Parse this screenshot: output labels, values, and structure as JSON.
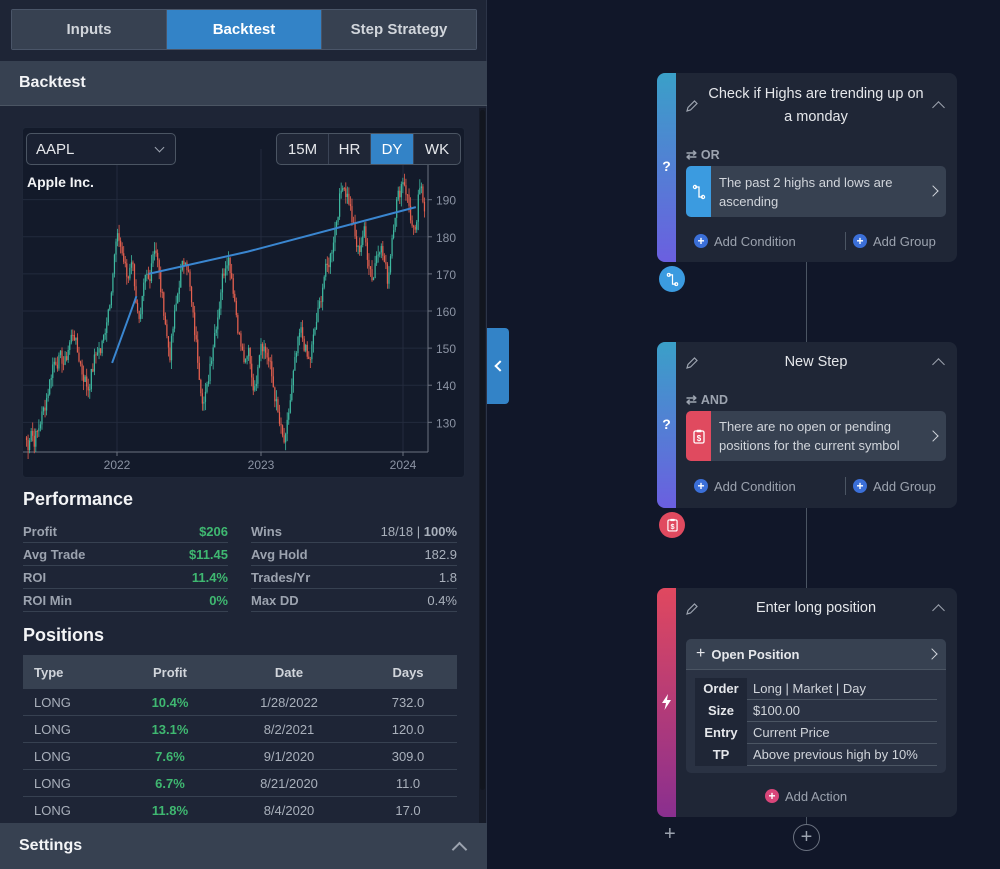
{
  "tabs": [
    {
      "label": "Inputs",
      "active": false
    },
    {
      "label": "Backtest",
      "active": true
    },
    {
      "label": "Step Strategy",
      "active": false
    }
  ],
  "backtest": {
    "section_title": "Backtest",
    "symbol": "AAPL",
    "timeframes": [
      {
        "label": "15M",
        "active": false
      },
      {
        "label": "HR",
        "active": false
      },
      {
        "label": "DY",
        "active": true
      },
      {
        "label": "WK",
        "active": false
      }
    ],
    "chart_title": "Apple Inc."
  },
  "chart_data": {
    "type": "candlestick",
    "title": "Apple Inc.",
    "symbol": "AAPL",
    "timeframe": "DY",
    "y_ticks": [
      130,
      140,
      150,
      160,
      170,
      180,
      190
    ],
    "x_ticks": [
      "2022",
      "2023",
      "2024"
    ],
    "ylim": [
      122,
      198
    ],
    "x_range": [
      "2021-05",
      "2024-02"
    ],
    "approx_closes": [
      126,
      124,
      128,
      125,
      127,
      130,
      133,
      136,
      140,
      145,
      147,
      146,
      148,
      145,
      149,
      152,
      155,
      150,
      147,
      143,
      141,
      139,
      143,
      147,
      150,
      149,
      153,
      158,
      163,
      170,
      178,
      180,
      176,
      172,
      168,
      175,
      170,
      160,
      155,
      165,
      170,
      168,
      175,
      178,
      172,
      165,
      160,
      152,
      148,
      156,
      162,
      168,
      172,
      175,
      170,
      162,
      155,
      148,
      140,
      135,
      138,
      145,
      150,
      156,
      160,
      168,
      172,
      175,
      171,
      165,
      158,
      152,
      148,
      145,
      150,
      142,
      138,
      147,
      152,
      150,
      148,
      145,
      140,
      135,
      130,
      126,
      124,
      132,
      138,
      145,
      150,
      155,
      152,
      148,
      146,
      151,
      156,
      160,
      165,
      170,
      172,
      175,
      180,
      185,
      190,
      195,
      192,
      190,
      185,
      180,
      176,
      178,
      182,
      176,
      172,
      168,
      175,
      178,
      176,
      172,
      168,
      178,
      185,
      190,
      193,
      196,
      192,
      188,
      182,
      180,
      190,
      194,
      188
    ],
    "trend_lines": [
      {
        "points": [
          [
            0.22,
            146
          ],
          [
            0.28,
            164
          ]
        ]
      },
      {
        "points": [
          [
            0.31,
            170
          ],
          [
            0.555,
            176
          ],
          [
            0.97,
            188
          ]
        ]
      }
    ],
    "colors": {
      "up": "#3eb8a0",
      "down": "#e5604f",
      "line": "#3a86d0"
    }
  },
  "performance": {
    "title": "Performance",
    "left": [
      {
        "label": "Profit",
        "value": "$206",
        "green": true
      },
      {
        "label": "Avg Trade",
        "value": "$11.45",
        "green": true
      },
      {
        "label": "ROI",
        "value": "11.4%",
        "green": true
      },
      {
        "label": "ROI Min",
        "value": "0%",
        "green": true
      }
    ],
    "right": [
      {
        "label": "Wins",
        "value": "18/18 | ",
        "value_bold": "100%"
      },
      {
        "label": "Avg Hold",
        "value": "182.9"
      },
      {
        "label": "Trades/Yr",
        "value": "1.8"
      },
      {
        "label": "Max DD",
        "value": "0.4%"
      }
    ]
  },
  "positions": {
    "title": "Positions",
    "columns": [
      "Type",
      "Profit",
      "Date",
      "Days"
    ],
    "rows": [
      [
        "LONG",
        "10.4%",
        "1/28/2022",
        "732.0"
      ],
      [
        "LONG",
        "13.1%",
        "8/2/2021",
        "120.0"
      ],
      [
        "LONG",
        "7.6%",
        "9/1/2020",
        "309.0"
      ],
      [
        "LONG",
        "6.7%",
        "8/21/2020",
        "11.0"
      ],
      [
        "LONG",
        "11.8%",
        "8/4/2020",
        "17.0"
      ]
    ]
  },
  "settings": {
    "title": "Settings"
  },
  "steps": [
    {
      "title": "Check if Highs are trending up on a monday",
      "kind": "condition",
      "logic": "OR",
      "condition_text": "The past 2 highs and lows are ascending",
      "condition_color": "#3b9be0",
      "condition_icon": "trend-path-icon",
      "bar_gradient": [
        "#3aa0c8",
        "#6b5fe0"
      ],
      "bar_glyph": "?",
      "add_condition": "Add Condition",
      "add_group": "Add Group"
    },
    {
      "title": "New Step",
      "kind": "condition",
      "logic": "AND",
      "condition_text": "There are no open or pending positions for the current symbol",
      "condition_color": "#e04a5f",
      "condition_icon": "clipboard-dollar-icon",
      "bar_gradient": [
        "#3aa0c8",
        "#6b5fe0"
      ],
      "bar_glyph": "?",
      "add_condition": "Add Condition",
      "add_group": "Add Group"
    },
    {
      "title": "Enter long position",
      "kind": "action",
      "action_title": "Open Position",
      "params": [
        {
          "key": "Order",
          "value": "Long | Market | Day"
        },
        {
          "key": "Size",
          "value": "$100.00"
        },
        {
          "key": "Entry",
          "value": "Current Price"
        },
        {
          "key": "TP",
          "value": "Above previous high by 10%"
        }
      ],
      "bar_gradient": [
        "#e0485f",
        "#8a2f8f"
      ],
      "bar_glyph": "lightning",
      "add_action": "Add Action"
    }
  ]
}
